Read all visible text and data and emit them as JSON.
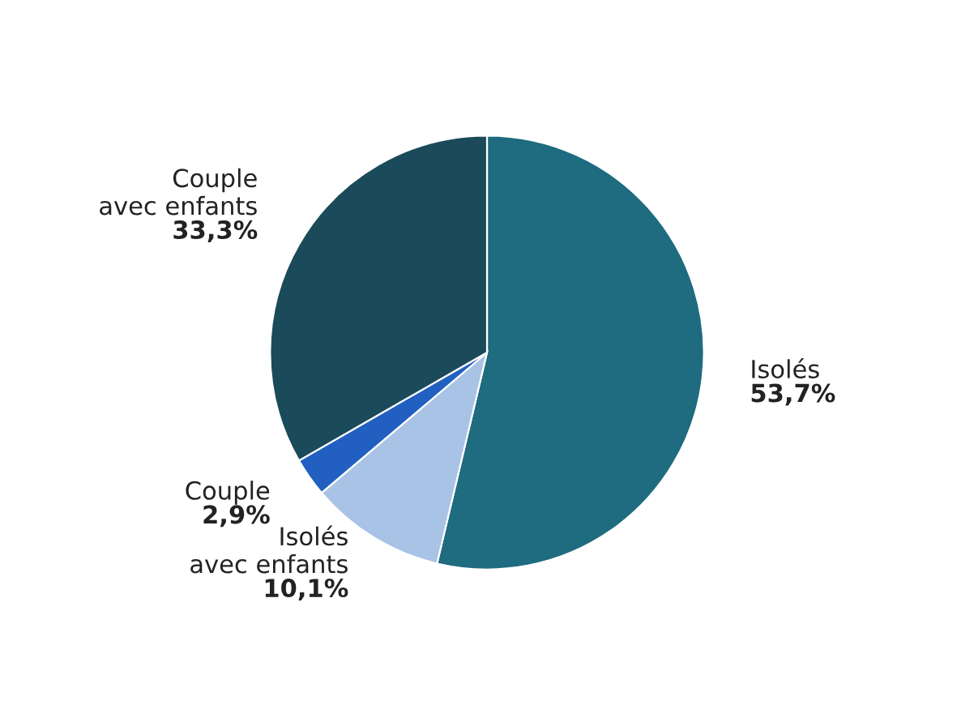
{
  "chart_data": {
    "type": "pie",
    "categories": [
      "Isolés",
      "Isolés\navec enfants",
      "Couple",
      "Couple\navec enfants"
    ],
    "values": [
      53.7,
      10.1,
      2.9,
      33.3
    ],
    "colors": [
      "#1f6b80",
      "#a9c3e6",
      "#2160c0",
      "#1b4a5a"
    ],
    "value_labels": [
      "53,7%",
      "10,1%",
      "2,9%",
      "33,3%"
    ]
  }
}
